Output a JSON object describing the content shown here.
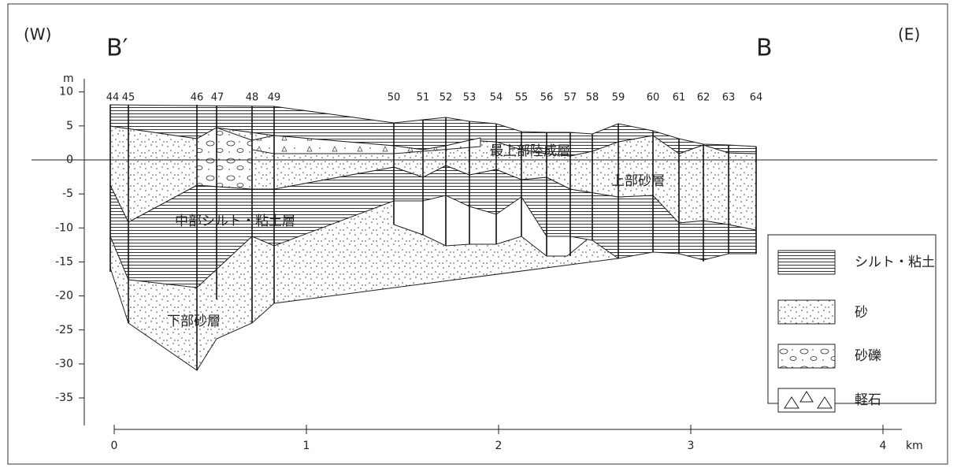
{
  "corner_labels": {
    "west": "(W)",
    "east": "(E)",
    "start": "B′",
    "end": "B"
  },
  "y_axis": {
    "unit": "m",
    "ticks": [
      10,
      5,
      0,
      -5,
      -10,
      -15,
      -20,
      -25,
      -30,
      -35
    ]
  },
  "x_axis": {
    "unit": "km",
    "ticks": [
      0,
      1,
      2,
      3,
      4
    ]
  },
  "boreholes": [
    "44",
    "45",
    "46",
    "47",
    "48",
    "49",
    "50",
    "51",
    "52",
    "53",
    "54",
    "55",
    "56",
    "57",
    "58",
    "59",
    "60",
    "61",
    "62",
    "63",
    "64"
  ],
  "layer_labels": {
    "top_terrestrial": "最上部陸成層",
    "upper_sand": "上部砂層",
    "middle_silt_clay": "中部シルト・粘土層",
    "lower_sand": "下部砂層"
  },
  "legend": [
    "シルト・粘土",
    "砂",
    "砂礫",
    "軽石"
  ]
}
